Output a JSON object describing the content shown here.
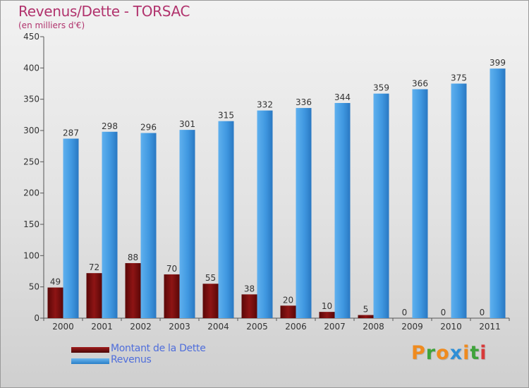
{
  "chart_data": {
    "type": "bar",
    "title": "Revenus/Dette - TORSAC",
    "subtitle": "(en milliers d'€)",
    "categories": [
      "2000",
      "2001",
      "2002",
      "2003",
      "2004",
      "2005",
      "2006",
      "2007",
      "2008",
      "2009",
      "2010",
      "2011"
    ],
    "series": [
      {
        "name": "Montant de la Dette",
        "values": [
          49,
          72,
          88,
          70,
          55,
          38,
          20,
          10,
          5,
          0,
          0,
          0
        ],
        "color": "#7a0e0e"
      },
      {
        "name": "Revenus",
        "values": [
          287,
          298,
          296,
          301,
          315,
          332,
          336,
          344,
          359,
          366,
          375,
          399
        ],
        "color": "#3f97e0"
      }
    ],
    "ylim": [
      0,
      450
    ],
    "yticks": [
      0,
      50,
      100,
      150,
      200,
      250,
      300,
      350,
      400,
      450
    ],
    "xlabel": "",
    "ylabel": "",
    "grid": false,
    "legend_position": "bottom-left"
  },
  "brand": {
    "letters": [
      "P",
      "r",
      "o",
      "x",
      "i",
      "t",
      "i"
    ],
    "colors": [
      "#ef8b1f",
      "#3ea33a",
      "#ef8b1f",
      "#2f8fd6",
      "#ef8b1f",
      "#3ea33a",
      "#d83a3a"
    ]
  }
}
